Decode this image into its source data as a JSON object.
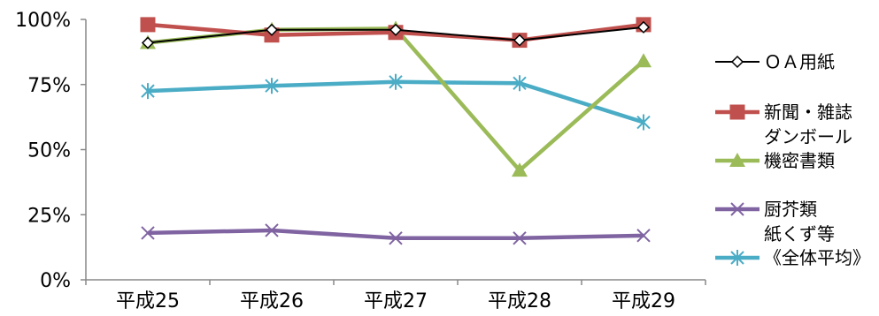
{
  "chart_data": {
    "type": "line",
    "categories": [
      "平成25",
      "平成26",
      "平成27",
      "平成28",
      "平成29"
    ],
    "ylim": [
      0,
      100
    ],
    "yticks": [
      "0%",
      "25%",
      "50%",
      "75%",
      "100%"
    ],
    "ytick_values": [
      0,
      25,
      50,
      75,
      100
    ],
    "grid": false,
    "legend_position": "right",
    "series": [
      {
        "name": "ＯＡ用紙",
        "values": [
          91,
          96,
          96,
          92,
          97
        ],
        "color": "#000000",
        "marker": "diamond"
      },
      {
        "name": "新聞・雑誌 ダンボール",
        "name_lines": [
          "新聞・雑誌",
          "ダンボール"
        ],
        "values": [
          98,
          94,
          95,
          92,
          98
        ],
        "color": "#c0504d",
        "marker": "square"
      },
      {
        "name": "機密書類",
        "values": [
          91,
          96,
          96.5,
          42,
          84
        ],
        "color": "#9bbb59",
        "marker": "triangle"
      },
      {
        "name": "厨芥類 紙くず等",
        "name_lines": [
          "厨芥類",
          "紙くず等"
        ],
        "values": [
          18,
          19,
          16,
          16,
          17
        ],
        "color": "#8064a2",
        "marker": "x"
      },
      {
        "name": "《全体平均》",
        "values": [
          72.5,
          74.5,
          76,
          75.5,
          60.5
        ],
        "color": "#4bacc6",
        "marker": "star"
      }
    ]
  }
}
